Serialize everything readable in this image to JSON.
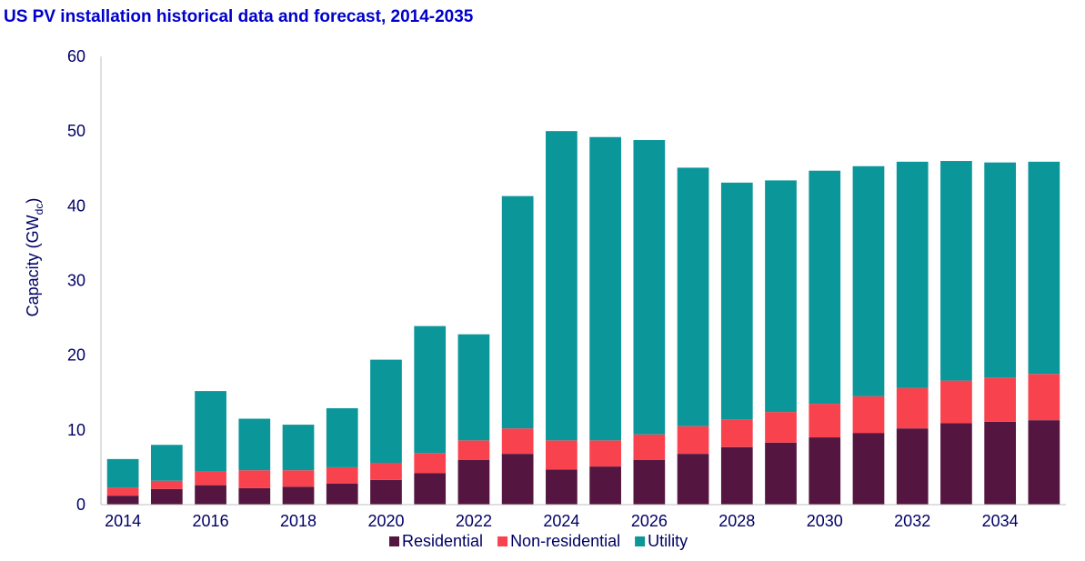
{
  "chart_data": {
    "type": "bar",
    "stacked": true,
    "title": "US PV installation historical data and forecast, 2014-2035",
    "xlabel": "",
    "ylabel": {
      "text": "Capacity (GW",
      "subscript": "dc",
      "suffix": ")"
    },
    "ylim": [
      0,
      60
    ],
    "yticks": [
      0,
      10,
      20,
      30,
      40,
      50,
      60
    ],
    "categories": [
      "2014",
      "2015",
      "2016",
      "2017",
      "2018",
      "2019",
      "2020",
      "2021",
      "2022",
      "2023",
      "2024",
      "2025",
      "2026",
      "2027",
      "2028",
      "2029",
      "2030",
      "2031",
      "2032",
      "2033",
      "2034",
      "2035"
    ],
    "xtick_labels": [
      "2014",
      "2016",
      "2018",
      "2020",
      "2022",
      "2024",
      "2026",
      "2028",
      "2030",
      "2032",
      "2034"
    ],
    "series": [
      {
        "name": "Residential",
        "color": "#541640",
        "values": [
          1.2,
          2.1,
          2.6,
          2.2,
          2.4,
          2.8,
          3.3,
          4.2,
          6.0,
          6.8,
          4.7,
          5.1,
          6.0,
          6.8,
          7.7,
          8.3,
          9.0,
          9.6,
          10.2,
          10.9,
          11.1,
          11.3
        ]
      },
      {
        "name": "Non-residential",
        "color": "#F8434F",
        "values": [
          1.1,
          1.1,
          1.8,
          2.4,
          2.2,
          2.2,
          2.3,
          2.7,
          2.6,
          3.4,
          3.9,
          3.5,
          3.4,
          3.7,
          3.7,
          4.1,
          4.5,
          4.9,
          5.4,
          5.7,
          5.9,
          6.2
        ]
      },
      {
        "name": "Utility",
        "color": "#0B969A",
        "values": [
          3.8,
          4.8,
          10.8,
          6.9,
          6.1,
          7.9,
          13.8,
          17.0,
          14.2,
          31.1,
          41.4,
          40.6,
          39.4,
          34.6,
          31.7,
          31.0,
          31.2,
          30.8,
          30.3,
          29.4,
          28.8,
          28.4
        ]
      }
    ],
    "colors": {
      "title": "#0000CC",
      "axis_text": "#000066",
      "axis_line": "#BFBFBF"
    },
    "legend": {
      "position": "bottom"
    },
    "grid": false
  }
}
